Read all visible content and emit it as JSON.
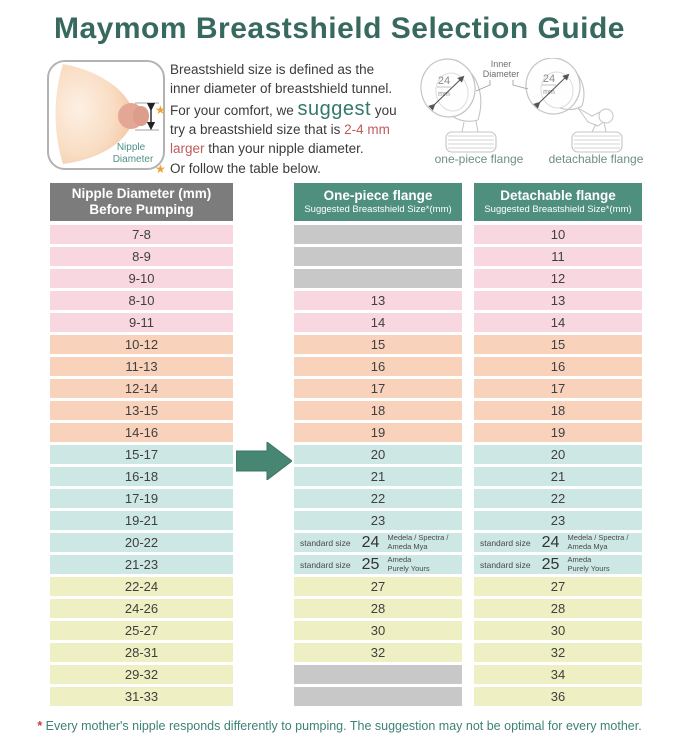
{
  "title": "Maymom Breastshield Selection Guide",
  "intro": {
    "line1": "Breastshield size is defined as the",
    "line2": "inner diameter of breastshield tunnel.",
    "bullet1_pre": "For your comfort, we ",
    "bullet1_suggest": "suggest",
    "bullet1_post": " you",
    "bullet1_cont1_pre": "try a breastshield size that is ",
    "bullet1_cont1_red": "2-4 mm",
    "bullet1_cont2_red": "larger",
    "bullet1_cont2_post": " than your nipple diameter.",
    "bullet2": "Or follow the table below."
  },
  "breast_diagram": {
    "label_line1": "Nipple",
    "label_line2": "Diameter"
  },
  "flanges": {
    "inner_diameter_line1": "Inner",
    "inner_diameter_line2": "Diameter",
    "size": "24",
    "unit": "mm",
    "one_piece_label": "one-piece flange",
    "detachable_label": "detachable flange"
  },
  "table": {
    "headers": {
      "nipple_line1": "Nipple Diameter (mm)",
      "nipple_line2": "Before Pumping",
      "one_piece_line1": "One-piece flange",
      "one_piece_line2": "Suggested Breastshield Size*(mm)",
      "detachable_line1": "Detachable flange",
      "detachable_line2": "Suggested Breastshield Size*(mm)"
    },
    "group_colors": {
      "pink": "#f8d7e0",
      "salmon": "#f9d2bc",
      "blue": "#cde7e4",
      "yellow": "#eef0c3",
      "blank": "#c8c8c8",
      "header_gray": "#7c7c7c",
      "header_teal": "#4f8f7e"
    },
    "rows": [
      {
        "nipple": "7-8",
        "group": "pink",
        "one_piece": {
          "blank": true
        },
        "detachable": {
          "value": "10"
        }
      },
      {
        "nipple": "8-9",
        "group": "pink",
        "one_piece": {
          "blank": true
        },
        "detachable": {
          "value": "11"
        }
      },
      {
        "nipple": "9-10",
        "group": "pink",
        "one_piece": {
          "blank": true
        },
        "detachable": {
          "value": "12"
        }
      },
      {
        "nipple": "8-10",
        "group": "pink",
        "one_piece": {
          "value": "13"
        },
        "detachable": {
          "value": "13"
        }
      },
      {
        "nipple": "9-11",
        "group": "pink",
        "one_piece": {
          "value": "14"
        },
        "detachable": {
          "value": "14"
        }
      },
      {
        "nipple": "10-12",
        "group": "salmon",
        "one_piece": {
          "value": "15"
        },
        "detachable": {
          "value": "15"
        }
      },
      {
        "nipple": "11-13",
        "group": "salmon",
        "one_piece": {
          "value": "16"
        },
        "detachable": {
          "value": "16"
        }
      },
      {
        "nipple": "12-14",
        "group": "salmon",
        "one_piece": {
          "value": "17"
        },
        "detachable": {
          "value": "17"
        }
      },
      {
        "nipple": "13-15",
        "group": "salmon",
        "one_piece": {
          "value": "18"
        },
        "detachable": {
          "value": "18"
        }
      },
      {
        "nipple": "14-16",
        "group": "salmon",
        "one_piece": {
          "value": "19"
        },
        "detachable": {
          "value": "19"
        }
      },
      {
        "nipple": "15-17",
        "group": "blue",
        "one_piece": {
          "value": "20"
        },
        "detachable": {
          "value": "20"
        }
      },
      {
        "nipple": "16-18",
        "group": "blue",
        "one_piece": {
          "value": "21"
        },
        "detachable": {
          "value": "21"
        }
      },
      {
        "nipple": "17-19",
        "group": "blue",
        "one_piece": {
          "value": "22"
        },
        "detachable": {
          "value": "22"
        }
      },
      {
        "nipple": "19-21",
        "group": "blue",
        "one_piece": {
          "value": "23"
        },
        "detachable": {
          "value": "23"
        }
      },
      {
        "nipple": "20-22",
        "group": "blue",
        "one_piece": {
          "value": "24",
          "prefix": "standard size",
          "brand_line1": "Medela / Spectra /",
          "brand_line2": "Ameda Mya"
        },
        "detachable": {
          "value": "24",
          "prefix": "standard size",
          "brand_line1": "Medela / Spectra /",
          "brand_line2": "Ameda Mya"
        }
      },
      {
        "nipple": "21-23",
        "group": "blue",
        "one_piece": {
          "value": "25",
          "prefix": "standard size",
          "brand_line1": "Ameda",
          "brand_line2": "Purely Yours"
        },
        "detachable": {
          "value": "25",
          "prefix": "standard size",
          "brand_line1": "Ameda",
          "brand_line2": "Purely Yours"
        }
      },
      {
        "nipple": "22-24",
        "group": "yellow",
        "one_piece": {
          "value": "27"
        },
        "detachable": {
          "value": "27"
        }
      },
      {
        "nipple": "24-26",
        "group": "yellow",
        "one_piece": {
          "value": "28"
        },
        "detachable": {
          "value": "28"
        }
      },
      {
        "nipple": "25-27",
        "group": "yellow",
        "one_piece": {
          "value": "30"
        },
        "detachable": {
          "value": "30"
        }
      },
      {
        "nipple": "28-31",
        "group": "yellow",
        "one_piece": {
          "value": "32"
        },
        "detachable": {
          "value": "32"
        }
      },
      {
        "nipple": "29-32",
        "group": "yellow",
        "one_piece": {
          "blank": true
        },
        "detachable": {
          "value": "34"
        }
      },
      {
        "nipple": "31-33",
        "group": "yellow",
        "one_piece": {
          "blank": true
        },
        "detachable": {
          "value": "36"
        }
      }
    ]
  },
  "footer": {
    "asterisk": "*",
    "text": " Every mother's nipple responds differently to pumping. The suggestion may not be optimal for every mother."
  }
}
